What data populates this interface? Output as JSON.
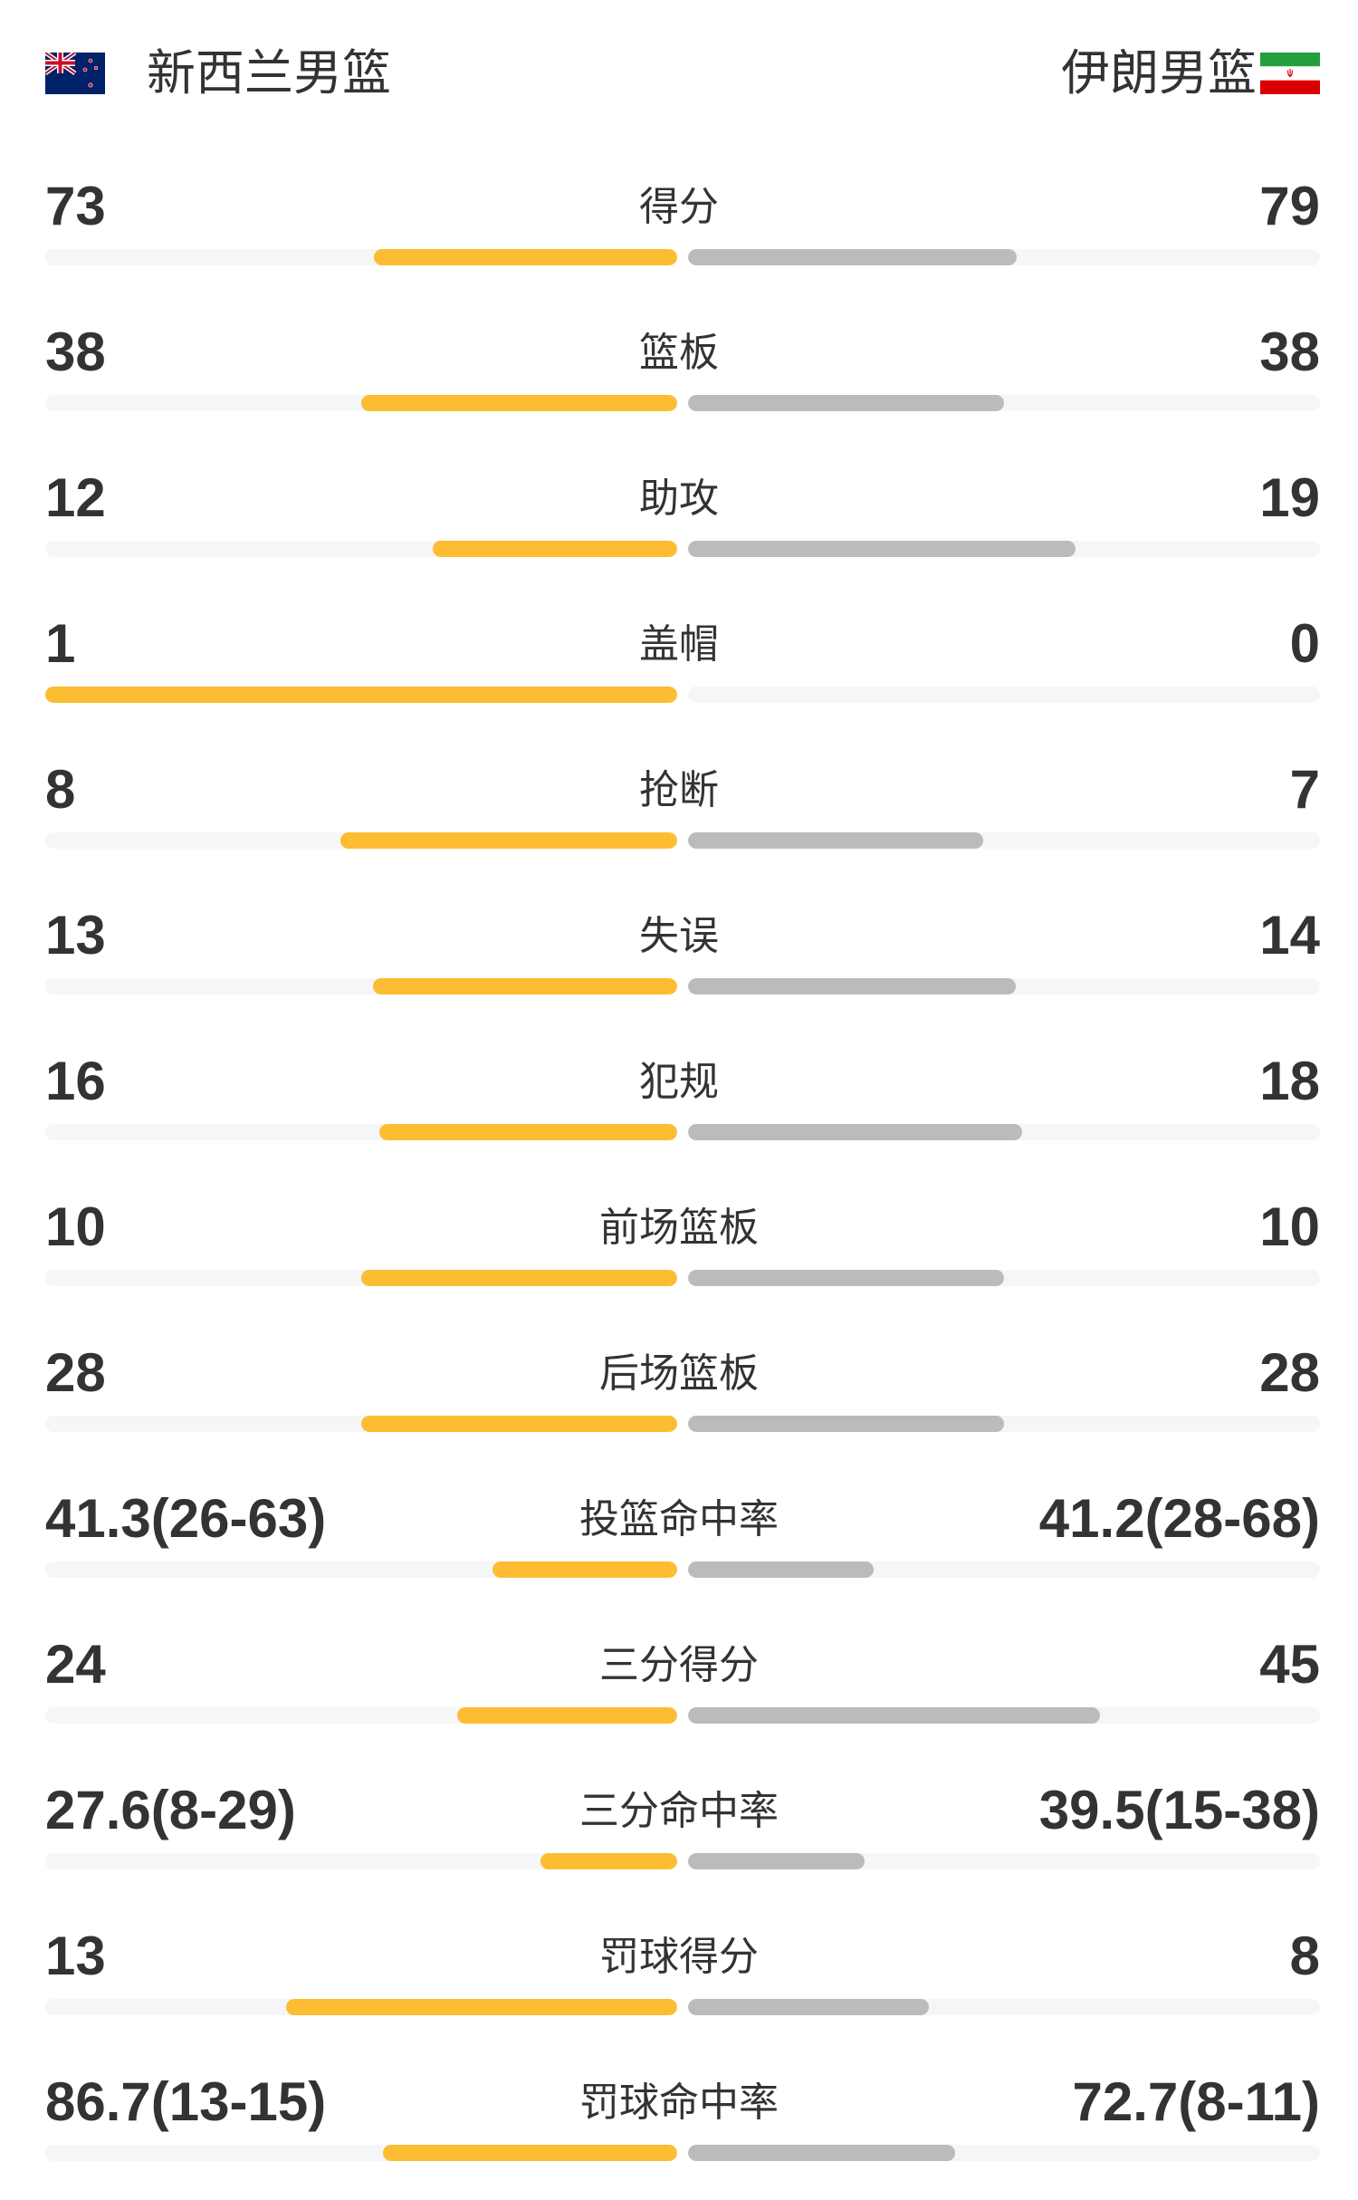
{
  "header": {
    "home_team": "新西兰男篮",
    "away_team": "伊朗男篮",
    "home_flag_icon": "new-zealand-flag-icon",
    "away_flag_icon": "iran-flag-icon"
  },
  "colors": {
    "home_bar": "#fcbd33",
    "away_bar": "#bbbbbb",
    "track": "#f5f6f8"
  },
  "stats": [
    {
      "label": "得分",
      "home": "73",
      "away": "79",
      "home_fill": 0.48,
      "away_fill": 0.52
    },
    {
      "label": "篮板",
      "home": "38",
      "away": "38",
      "home_fill": 0.5,
      "away_fill": 0.5
    },
    {
      "label": "助攻",
      "home": "12",
      "away": "19",
      "home_fill": 0.387,
      "away_fill": 0.613
    },
    {
      "label": "盖帽",
      "home": "1",
      "away": "0",
      "home_fill": 1.0,
      "away_fill": 0
    },
    {
      "label": "抢断",
      "home": "8",
      "away": "7",
      "home_fill": 0.533,
      "away_fill": 0.467
    },
    {
      "label": "失误",
      "home": "13",
      "away": "14",
      "home_fill": 0.481,
      "away_fill": 0.519
    },
    {
      "label": "犯规",
      "home": "16",
      "away": "18",
      "home_fill": 0.471,
      "away_fill": 0.529
    },
    {
      "label": "前场篮板",
      "home": "10",
      "away": "10",
      "home_fill": 0.5,
      "away_fill": 0.5
    },
    {
      "label": "后场篮板",
      "home": "28",
      "away": "28",
      "home_fill": 0.5,
      "away_fill": 0.5
    },
    {
      "label": "投篮命中率",
      "home": "41.3(26-63)",
      "away": "41.2(28-68)",
      "home_fill": 0.293,
      "away_fill": 0.293
    },
    {
      "label": "三分得分",
      "home": "24",
      "away": "45",
      "home_fill": 0.348,
      "away_fill": 0.652
    },
    {
      "label": "三分命中率",
      "home": "27.6(8-29)",
      "away": "39.5(15-38)",
      "home_fill": 0.216,
      "away_fill": 0.28
    },
    {
      "label": "罚球得分",
      "home": "13",
      "away": "8",
      "home_fill": 0.619,
      "away_fill": 0.381
    },
    {
      "label": "罚球命中率",
      "home": "86.7(13-15)",
      "away": "72.7(8-11)",
      "home_fill": 0.465,
      "away_fill": 0.423
    }
  ]
}
